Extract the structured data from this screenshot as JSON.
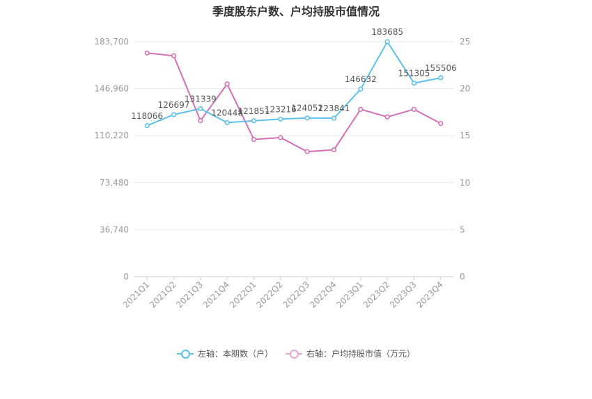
{
  "chart_data": {
    "type": "line",
    "title": "季度股东户数、户均持股市值情况",
    "categories": [
      "2021Q1",
      "2021Q2",
      "2021Q3",
      "2021Q4",
      "2022Q1",
      "2022Q2",
      "2022Q3",
      "2022Q4",
      "2023Q1",
      "2023Q2",
      "2023Q3",
      "2023Q4"
    ],
    "left_axis": {
      "ticks": [
        0,
        36740,
        73480,
        110220,
        146960,
        183700
      ],
      "tick_labels": [
        "0",
        "36,740",
        "73,480",
        "110,220",
        "146,960",
        "183,700"
      ],
      "ylim": [
        0,
        183700
      ]
    },
    "right_axis": {
      "ticks": [
        0,
        5,
        10,
        15,
        20,
        25
      ],
      "tick_labels": [
        "0",
        "5",
        "10",
        "15",
        "20",
        "25"
      ],
      "ylim": [
        0,
        25
      ]
    },
    "series": [
      {
        "name": "左轴：本期数（户）",
        "axis": "left",
        "color": "#5bc0eb",
        "values": [
          118066,
          126697,
          131339,
          120448,
          121851,
          123216,
          124052,
          123841,
          146632,
          183685,
          151305,
          155506
        ],
        "data_labels": [
          "118066",
          "126697",
          "131339",
          "120448",
          "121851",
          "123216",
          "124052",
          "123841",
          "146632",
          "183685",
          "151305",
          "155506"
        ]
      },
      {
        "name": "右轴：户均持股市值（万元）",
        "axis": "right",
        "color": "#d36fb4",
        "values": [
          23.8,
          23.5,
          16.6,
          20.5,
          14.6,
          14.8,
          13.3,
          13.5,
          17.8,
          17.0,
          17.8,
          16.3
        ]
      }
    ],
    "grid": true,
    "legend_position": "bottom"
  }
}
